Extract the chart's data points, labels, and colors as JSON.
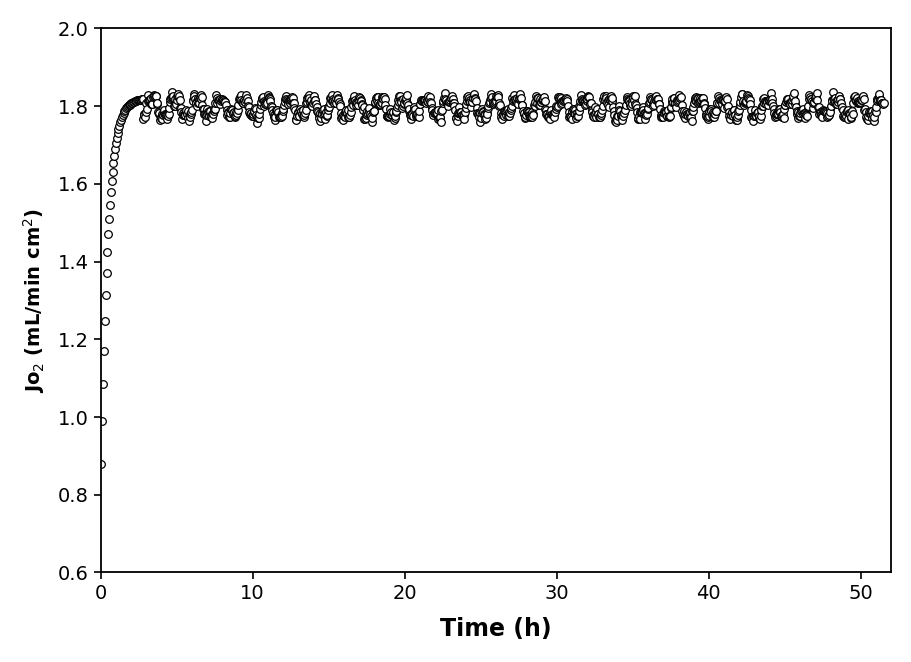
{
  "title": "",
  "xlabel": "Time (h)",
  "ylabel": "Jo$_2$ (mL/min cm$^2$)",
  "xlim": [
    0,
    52
  ],
  "ylim": [
    0.6,
    2.0
  ],
  "xticks": [
    0,
    10,
    20,
    30,
    40,
    50
  ],
  "yticks": [
    0.6,
    0.8,
    1.0,
    1.2,
    1.4,
    1.6,
    1.8,
    2.0
  ],
  "marker": "o",
  "marker_size": 5.5,
  "marker_facecolor": "white",
  "marker_edgecolor": "black",
  "marker_edgewidth": 0.9,
  "background_color": "#ffffff",
  "xlabel_fontsize": 17,
  "ylabel_fontsize": 14,
  "tick_fontsize": 14,
  "phase1_n": 50,
  "phase1_t_start": 0.05,
  "phase1_t_end": 2.8,
  "phase1_amplitude": 1.05,
  "phase1_rate": 2.2,
  "phase1_base": 1.82,
  "phase2_n": 1200,
  "phase2_t_start": 2.8,
  "phase2_t_end": 51.5,
  "phase2_base": 1.797,
  "phase2_noise_std": 0.006,
  "phase2_osc1_amp": 0.022,
  "phase2_osc1_period": 1.5,
  "phase2_osc2_amp": 0.012,
  "phase2_osc2_period": 0.5
}
